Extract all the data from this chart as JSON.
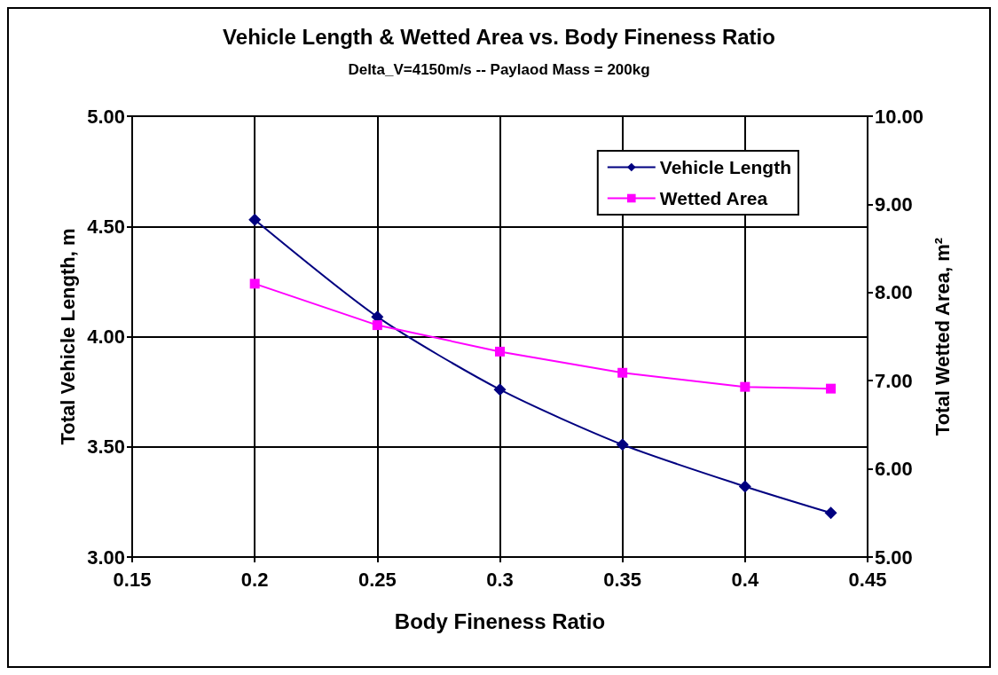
{
  "chart_data": {
    "type": "line",
    "title": "Vehicle Length & Wetted Area vs. Body Fineness Ratio",
    "subtitle": "Delta_V=4150m/s -- Paylaod Mass = 200kg",
    "xlabel": "Body Fineness Ratio",
    "ylabel": "Total Vehicle Length, m",
    "y2label": "Total Wetted Area, m²",
    "x": [
      0.2,
      0.25,
      0.3,
      0.35,
      0.4,
      0.435
    ],
    "series": [
      {
        "name": "Vehicle Length",
        "color": "#000080",
        "marker": "diamond",
        "values": [
          4.53,
          4.09,
          3.76,
          3.51,
          3.32,
          3.2
        ]
      },
      {
        "name": "Wetted Area",
        "color": "#ff00ff",
        "marker": "square",
        "axis": "y2",
        "values": [
          8.1,
          7.63,
          7.33,
          7.09,
          6.93,
          6.91
        ]
      }
    ],
    "xlim": [
      0.15,
      0.45
    ],
    "xticks": [
      0.15,
      0.2,
      0.25,
      0.3,
      0.35,
      0.4,
      0.45
    ],
    "ylim": [
      3,
      5
    ],
    "yticks": [
      {
        "value": 3,
        "label": "3.00"
      },
      {
        "value": 3.5,
        "label": "3.50"
      },
      {
        "value": 4,
        "label": "4.00"
      },
      {
        "value": 4.5,
        "label": "4.50"
      },
      {
        "value": 5,
        "label": "5.00"
      }
    ],
    "y2lim": [
      5,
      10
    ],
    "y2ticks": [
      {
        "value": 5,
        "label": "5.00"
      },
      {
        "value": 6,
        "label": "6.00"
      },
      {
        "value": 7,
        "label": "7.00"
      },
      {
        "value": 8,
        "label": "8.00"
      },
      {
        "value": 9,
        "label": "9.00"
      },
      {
        "value": 10,
        "label": "10.00"
      }
    ],
    "grid": true,
    "legend": "top right",
    "line_style": "solid"
  }
}
